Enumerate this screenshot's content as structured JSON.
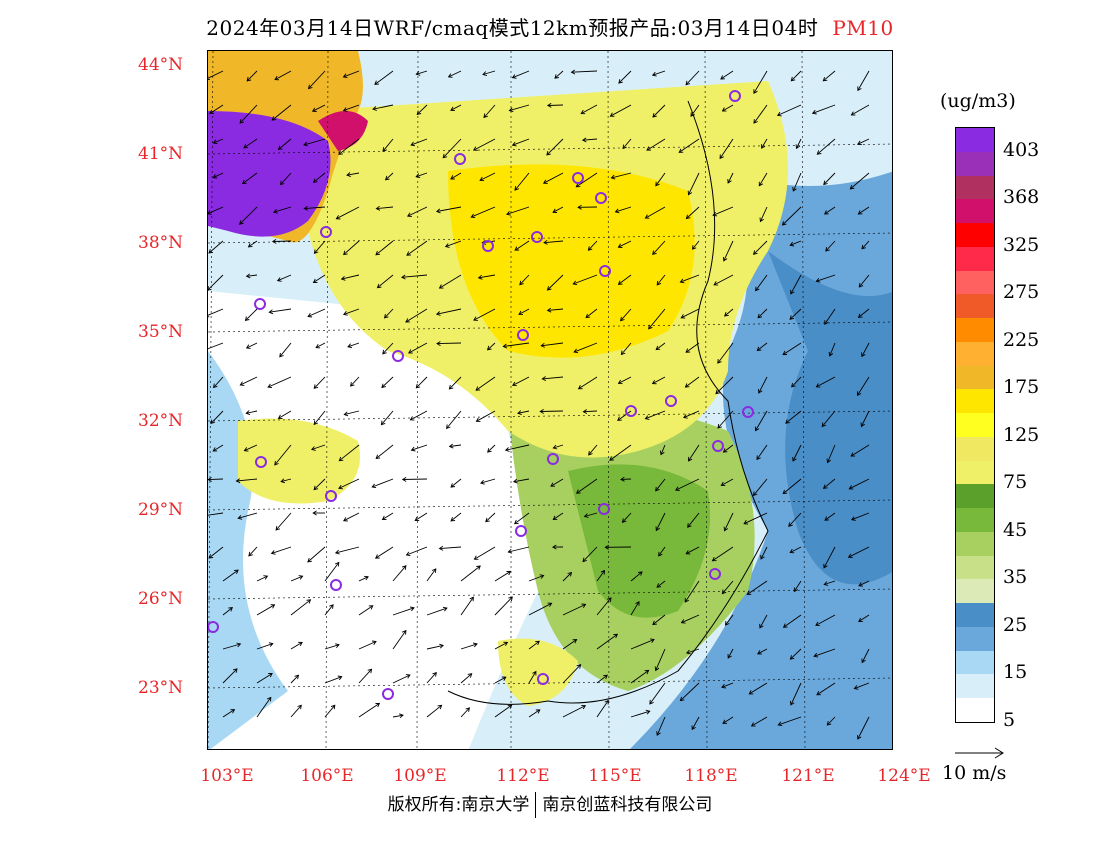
{
  "title": {
    "main": "2024年03月14日WRF/cmaq模式12km预报产品:03月14日04时",
    "variable": "PM10"
  },
  "map": {
    "lat_labels": [
      "44°N",
      "41°N",
      "38°N",
      "35°N",
      "32°N",
      "29°N",
      "26°N",
      "23°N"
    ],
    "lon_labels": [
      "103°E",
      "106°E",
      "109°E",
      "112°E",
      "115°E",
      "118°E",
      "121°E",
      "124°E"
    ]
  },
  "colorbar": {
    "unit": "(ug/m3)",
    "labels": [
      "403",
      "368",
      "325",
      "275",
      "225",
      "175",
      "125",
      "75",
      "45",
      "35",
      "25",
      "15",
      "5"
    ],
    "colors": [
      "#8a2be2",
      "#9b30b8",
      "#b03060",
      "#d0106a",
      "#ff0000",
      "#ff2a4a",
      "#ff6060",
      "#f05a28",
      "#ff8c00",
      "#ffb030",
      "#f0b828",
      "#ffe600",
      "#ffff20",
      "#f0e860",
      "#f0f068",
      "#5aa02a",
      "#78b83a",
      "#a8d060",
      "#c8e088",
      "#dceab8",
      "#4a8ec8",
      "#6aa8dc",
      "#a8d8f4",
      "#d8eff9",
      "#ffffff"
    ]
  },
  "vector_legend": {
    "label": "10 m/s"
  },
  "footer": {
    "left": "版权所有:南京大学",
    "right": "南京创蓝科技有限公司"
  }
}
